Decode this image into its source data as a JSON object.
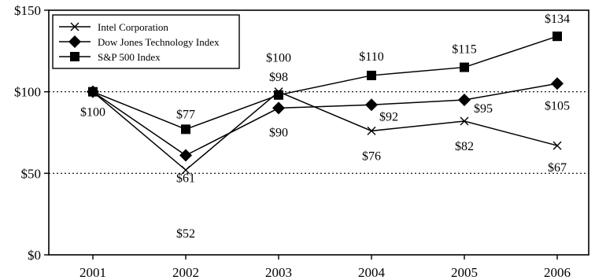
{
  "chart_data": {
    "type": "line",
    "categories": [
      "2001",
      "2002",
      "2003",
      "2004",
      "2005",
      "2006"
    ],
    "ylim": [
      0,
      150
    ],
    "y_ticks": [
      {
        "value": 0,
        "label": "$0"
      },
      {
        "value": 50,
        "label": "$50"
      },
      {
        "value": 100,
        "label": "$100"
      },
      {
        "value": 150,
        "label": "$150"
      }
    ],
    "dotted_gridlines": [
      50,
      100
    ],
    "legend_position": "top-left",
    "series": [
      {
        "name": "Intel Corporation",
        "marker": "x-cross",
        "values": [
          100,
          52,
          100,
          76,
          82,
          67
        ],
        "labels": [
          "",
          "$52",
          "$100",
          "$76",
          "$82",
          "$67"
        ]
      },
      {
        "name": "Dow Jones Technology Index",
        "marker": "diamond",
        "values": [
          100,
          61,
          90,
          92,
          95,
          105
        ],
        "labels": [
          "$100",
          "$61",
          "$90",
          "$92",
          "$95",
          "$105"
        ]
      },
      {
        "name": "S&P 500 Index",
        "marker": "square",
        "values": [
          100,
          77,
          98,
          110,
          115,
          134
        ],
        "labels": [
          "",
          "$77",
          "$98",
          "$110",
          "$115",
          "$134"
        ]
      }
    ]
  }
}
